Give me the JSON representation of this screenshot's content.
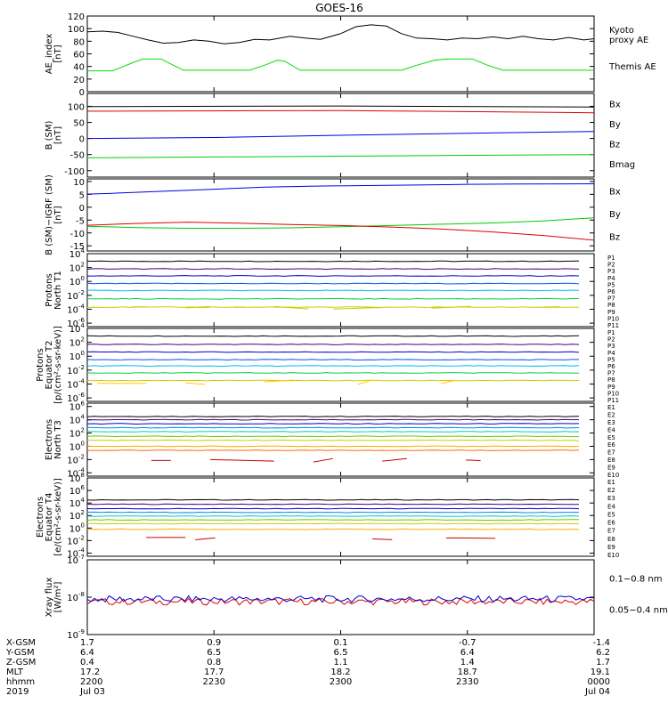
{
  "title": "GOES-16",
  "chart_data": [
    {
      "type": "line",
      "ylabel": [
        "AE_index",
        "[nT]"
      ],
      "yticks": [
        "0",
        "20",
        "40",
        "60",
        "80",
        "100",
        "120"
      ],
      "ylim": [
        0,
        120
      ],
      "legend": [
        {
          "name": "Kyoto\nproxy AE",
          "color": "#00ee00"
        },
        {
          "name": "Themis AE",
          "color": "#000000"
        }
      ],
      "series": [
        {
          "name": "Kyoto proxy AE",
          "color": "#00dd00",
          "points": [
            [
              0,
              33
            ],
            [
              0.05,
              33
            ],
            [
              0.09,
              46
            ],
            [
              0.11,
              52
            ],
            [
              0.145,
              52
            ],
            [
              0.17,
              42
            ],
            [
              0.19,
              34
            ],
            [
              0.23,
              34
            ],
            [
              0.32,
              34
            ],
            [
              0.35,
              42
            ],
            [
              0.375,
              50
            ],
            [
              0.39,
              48
            ],
            [
              0.42,
              34
            ],
            [
              0.55,
              34
            ],
            [
              0.62,
              34
            ],
            [
              0.65,
              42
            ],
            [
              0.685,
              50
            ],
            [
              0.71,
              52
            ],
            [
              0.76,
              52
            ],
            [
              0.79,
              42
            ],
            [
              0.82,
              34
            ],
            [
              0.9,
              34
            ],
            [
              1,
              34
            ]
          ]
        },
        {
          "name": "Themis AE",
          "color": "#000000",
          "points": [
            [
              0,
              95
            ],
            [
              0.03,
              96
            ],
            [
              0.06,
              94
            ],
            [
              0.09,
              88
            ],
            [
              0.12,
              82
            ],
            [
              0.15,
              77
            ],
            [
              0.18,
              78
            ],
            [
              0.21,
              82
            ],
            [
              0.24,
              80
            ],
            [
              0.27,
              76
            ],
            [
              0.3,
              78
            ],
            [
              0.33,
              83
            ],
            [
              0.36,
              82
            ],
            [
              0.4,
              88
            ],
            [
              0.43,
              85
            ],
            [
              0.46,
              83
            ],
            [
              0.5,
              92
            ],
            [
              0.53,
              103
            ],
            [
              0.56,
              106
            ],
            [
              0.59,
              104
            ],
            [
              0.62,
              92
            ],
            [
              0.65,
              85
            ],
            [
              0.68,
              84
            ],
            [
              0.71,
              82
            ],
            [
              0.74,
              85
            ],
            [
              0.77,
              84
            ],
            [
              0.8,
              87
            ],
            [
              0.83,
              84
            ],
            [
              0.86,
              88
            ],
            [
              0.89,
              84
            ],
            [
              0.92,
              82
            ],
            [
              0.95,
              86
            ],
            [
              0.98,
              82
            ],
            [
              1,
              84
            ]
          ]
        }
      ]
    },
    {
      "type": "line",
      "ylabel": [
        "B (SM)",
        "[nT]"
      ],
      "yticks": [
        "-100",
        "-50",
        "0",
        "50",
        "100"
      ],
      "ylim": [
        -120,
        140
      ],
      "legend": [
        {
          "name": "Bx",
          "color": "#0000cc"
        },
        {
          "name": "By",
          "color": "#00cc00"
        },
        {
          "name": "Bz",
          "color": "#cc0000"
        },
        {
          "name": "Bmag",
          "color": "#000000"
        }
      ],
      "series": [
        {
          "name": "Bmag",
          "color": "#000000",
          "points": [
            [
              0,
              99
            ],
            [
              0.5,
              101
            ],
            [
              1,
              98
            ]
          ]
        },
        {
          "name": "Bz",
          "color": "#dd0000",
          "points": [
            [
              0,
              85
            ],
            [
              0.5,
              87
            ],
            [
              1,
              80
            ]
          ]
        },
        {
          "name": "Bx",
          "color": "#0000dd",
          "points": [
            [
              0,
              0
            ],
            [
              0.25,
              3
            ],
            [
              0.5,
              10
            ],
            [
              0.75,
              16
            ],
            [
              1,
              22
            ]
          ]
        },
        {
          "name": "By",
          "color": "#00cc00",
          "points": [
            [
              0,
              -60
            ],
            [
              0.3,
              -57
            ],
            [
              0.6,
              -54
            ],
            [
              1,
              -50
            ]
          ]
        }
      ]
    },
    {
      "type": "line",
      "ylabel": [
        "B (SM)−IGRF (SM)",
        "[nT]"
      ],
      "yticks": [
        "-15",
        "-10",
        "-5",
        "0",
        "5",
        "10"
      ],
      "ylim": [
        -17,
        11
      ],
      "legend": [
        {
          "name": "Bx",
          "color": "#0000cc"
        },
        {
          "name": "By",
          "color": "#00cc00"
        },
        {
          "name": "Bz",
          "color": "#cc0000"
        }
      ],
      "series": [
        {
          "name": "Bx",
          "color": "#0000dd",
          "points": [
            [
              0,
              5.1
            ],
            [
              0.05,
              5.4
            ],
            [
              0.15,
              6.2
            ],
            [
              0.25,
              7.0
            ],
            [
              0.35,
              7.8
            ],
            [
              0.45,
              8.2
            ],
            [
              0.55,
              8.4
            ],
            [
              0.65,
              8.6
            ],
            [
              0.75,
              8.9
            ],
            [
              0.85,
              9.0
            ],
            [
              1,
              9.1
            ]
          ]
        },
        {
          "name": "By",
          "color": "#00cc00",
          "points": [
            [
              0,
              -7.4
            ],
            [
              0.1,
              -7.9
            ],
            [
              0.2,
              -8.2
            ],
            [
              0.3,
              -8.2
            ],
            [
              0.4,
              -8.0
            ],
            [
              0.5,
              -7.6
            ],
            [
              0.6,
              -7.1
            ],
            [
              0.7,
              -6.6
            ],
            [
              0.8,
              -6.1
            ],
            [
              0.9,
              -5.3
            ],
            [
              1,
              -4.1
            ]
          ]
        },
        {
          "name": "Bz",
          "color": "#dd0000",
          "points": [
            [
              0,
              -7.0
            ],
            [
              0.1,
              -6.3
            ],
            [
              0.2,
              -5.8
            ],
            [
              0.3,
              -6.2
            ],
            [
              0.4,
              -6.7
            ],
            [
              0.5,
              -7.1
            ],
            [
              0.6,
              -7.7
            ],
            [
              0.7,
              -8.5
            ],
            [
              0.8,
              -9.6
            ],
            [
              0.9,
              -11.0
            ],
            [
              1,
              -12.8
            ]
          ]
        }
      ]
    },
    {
      "type": "line",
      "ylabel": [
        "Protons",
        "North T1"
      ],
      "yticks": [
        "10^-6",
        "10^-4",
        "10^-2",
        "10^0",
        "10^2",
        "10^4"
      ],
      "ylim": [
        -6.5,
        4
      ],
      "log": true,
      "legend": [
        {
          "name": "P1",
          "color": "#000000"
        },
        {
          "name": "P2",
          "color": "#440077"
        },
        {
          "name": "P3",
          "color": "#0000cc"
        },
        {
          "name": "P4",
          "color": "#0055ee"
        },
        {
          "name": "P5",
          "color": "#00aadd"
        },
        {
          "name": "P6",
          "color": "#00bb66"
        },
        {
          "name": "P7",
          "color": "#cccc00"
        },
        {
          "name": "P8",
          "color": "#ffcc00"
        },
        {
          "name": "P9",
          "color": "#ff7700"
        },
        {
          "name": "P10",
          "color": "#ee0000"
        },
        {
          "name": "P11",
          "color": "#aa0000"
        }
      ],
      "series": [
        {
          "name": "P1",
          "color": "#000000",
          "level": 2.9
        },
        {
          "name": "P2",
          "color": "#440077",
          "level": 1.8
        },
        {
          "name": "P3",
          "color": "#0000cc",
          "level": 0.8
        },
        {
          "name": "P4",
          "color": "#0055ee",
          "level": -0.3
        },
        {
          "name": "P5",
          "color": "#00bbee",
          "level": -1.3
        },
        {
          "name": "P6",
          "color": "#00cc44",
          "level": -2.5
        },
        {
          "name": "P7",
          "color": "#cccc00",
          "level": -3.7
        }
      ]
    },
    {
      "type": "line",
      "ylabel": [
        "Protons",
        "Equator T2",
        "[p/(cm²-s-sr-keV)]"
      ],
      "yticks": [
        "10^-6",
        "10^-4",
        "10^-2",
        "10^0",
        "10^2",
        "10^4"
      ],
      "ylim": [
        -6.5,
        4
      ],
      "log": true,
      "legend": [
        {
          "name": "P1",
          "color": "#000000"
        },
        {
          "name": "P2",
          "color": "#440077"
        },
        {
          "name": "P3",
          "color": "#0000cc"
        },
        {
          "name": "P4",
          "color": "#0055ee"
        },
        {
          "name": "P5",
          "color": "#00aadd"
        },
        {
          "name": "P6",
          "color": "#00bb66"
        },
        {
          "name": "P7",
          "color": "#cccc00"
        },
        {
          "name": "P8",
          "color": "#ffcc00"
        },
        {
          "name": "P9",
          "color": "#ff7700"
        },
        {
          "name": "P10",
          "color": "#ee0000"
        },
        {
          "name": "P11",
          "color": "#aa0000"
        }
      ],
      "series": [
        {
          "name": "P1",
          "color": "#000000",
          "level": 2.9
        },
        {
          "name": "P2",
          "color": "#440077",
          "level": 1.7
        },
        {
          "name": "P3",
          "color": "#0000cc",
          "level": 0.6
        },
        {
          "name": "P4",
          "color": "#0055ee",
          "level": -0.5
        },
        {
          "name": "P5",
          "color": "#00bbee",
          "level": -1.4
        },
        {
          "name": "P6",
          "color": "#00cc44",
          "level": -2.4
        },
        {
          "name": "P7",
          "color": "#cccc00",
          "level": -3.5
        }
      ]
    },
    {
      "type": "line",
      "ylabel": [
        "Electrons",
        "North T3"
      ],
      "yticks": [
        "10^-4",
        "10^-2",
        "10^0",
        "10^2",
        "10^4",
        "10^6"
      ],
      "ylim": [
        -4.5,
        6.5
      ],
      "log": true,
      "legend": [
        {
          "name": "E1",
          "color": "#000000"
        },
        {
          "name": "E2",
          "color": "#440077"
        },
        {
          "name": "E3",
          "color": "#0000cc"
        },
        {
          "name": "E4",
          "color": "#0088ee"
        },
        {
          "name": "E5",
          "color": "#00ccbb"
        },
        {
          "name": "E6",
          "color": "#66cc00"
        },
        {
          "name": "E7",
          "color": "#cccc00"
        },
        {
          "name": "E8",
          "color": "#ffcc00"
        },
        {
          "name": "E9",
          "color": "#ff6600"
        },
        {
          "name": "E10",
          "color": "#cc0000"
        }
      ],
      "series": [
        {
          "name": "E1",
          "color": "#000000",
          "level": 4.5
        },
        {
          "name": "E2",
          "color": "#440077",
          "level": 4.0
        },
        {
          "name": "E3",
          "color": "#0000cc",
          "level": 3.4
        },
        {
          "name": "E4",
          "color": "#0088ee",
          "level": 2.8
        },
        {
          "name": "E5",
          "color": "#00ccbb",
          "level": 2.2
        },
        {
          "name": "E6",
          "color": "#66cc00",
          "level": 1.5
        },
        {
          "name": "E7",
          "color": "#cccc00",
          "level": 0.9
        },
        {
          "name": "E8",
          "color": "#ffaa00",
          "level": 0.0
        },
        {
          "name": "E9",
          "color": "#ff6600",
          "level": -0.6
        }
      ]
    },
    {
      "type": "line",
      "ylabel": [
        "Electrons",
        "Equator T4",
        "[e/(cm²-s-sr-keV)]"
      ],
      "yticks": [
        "10^-4",
        "10^-2",
        "10^0",
        "10^2",
        "10^4",
        "10^6",
        "10^8"
      ],
      "ylim": [
        -4.5,
        8
      ],
      "log": true,
      "legend": [
        {
          "name": "E1",
          "color": "#000000"
        },
        {
          "name": "E2",
          "color": "#440077"
        },
        {
          "name": "E3",
          "color": "#0000cc"
        },
        {
          "name": "E4",
          "color": "#0088ee"
        },
        {
          "name": "E5",
          "color": "#00ccbb"
        },
        {
          "name": "E6",
          "color": "#66cc00"
        },
        {
          "name": "E7",
          "color": "#cccc00"
        },
        {
          "name": "E8",
          "color": "#ffcc00"
        },
        {
          "name": "E9",
          "color": "#ff6600"
        },
        {
          "name": "E10",
          "color": "#cc0000"
        }
      ],
      "series": [
        {
          "name": "E1",
          "color": "#000000",
          "level": 4.5
        },
        {
          "name": "E2",
          "color": "#440077",
          "level": 3.8
        },
        {
          "name": "E3",
          "color": "#0000cc",
          "level": 3.1
        },
        {
          "name": "E4",
          "color": "#0088ee",
          "level": 2.5
        },
        {
          "name": "E5",
          "color": "#00ccbb",
          "level": 1.9
        },
        {
          "name": "E6",
          "color": "#66cc00",
          "level": 1.3
        },
        {
          "name": "E7",
          "color": "#cccc00",
          "level": 0.7
        },
        {
          "name": "E8",
          "color": "#ffaa00",
          "level": -0.2
        }
      ]
    },
    {
      "type": "line",
      "ylabel": [
        "Xray flux",
        "[W/m²]"
      ],
      "yticks": [
        "10^-9",
        "10^-8",
        "10^-7"
      ],
      "ylim": [
        -9,
        -7
      ],
      "log": true,
      "legend": [
        {
          "name": "0.1−0.8 nm",
          "color": "#dd0000"
        },
        {
          "name": "0.05−0.4 nm",
          "color": "#0000cc"
        }
      ],
      "series": [
        {
          "name": "0.1−0.8 nm",
          "color": "#dd0000",
          "level": -8.12
        },
        {
          "name": "0.05−0.4 nm",
          "color": "#0000cc",
          "level": -8.05
        }
      ]
    }
  ],
  "x_axis": {
    "row_labels": [
      "X-GSM",
      "Y-GSM",
      "Z-GSM",
      "MLT",
      "hhmm",
      "2019"
    ],
    "columns": [
      {
        "values": [
          "1.7",
          "6.4",
          "0.4",
          "17.2",
          "2200",
          "Jul 03"
        ]
      },
      {
        "values": [
          "0.9",
          "6.5",
          "0.8",
          "17.7",
          "2230",
          ""
        ]
      },
      {
        "values": [
          "0.1",
          "6.5",
          "1.1",
          "18.2",
          "2300",
          ""
        ]
      },
      {
        "values": [
          "-0.7",
          "6.4",
          "1.4",
          "18.7",
          "2330",
          ""
        ]
      },
      {
        "values": [
          "-1.4",
          "6.2",
          "1.7",
          "19.1",
          "0000",
          "Jul 04"
        ]
      }
    ]
  }
}
